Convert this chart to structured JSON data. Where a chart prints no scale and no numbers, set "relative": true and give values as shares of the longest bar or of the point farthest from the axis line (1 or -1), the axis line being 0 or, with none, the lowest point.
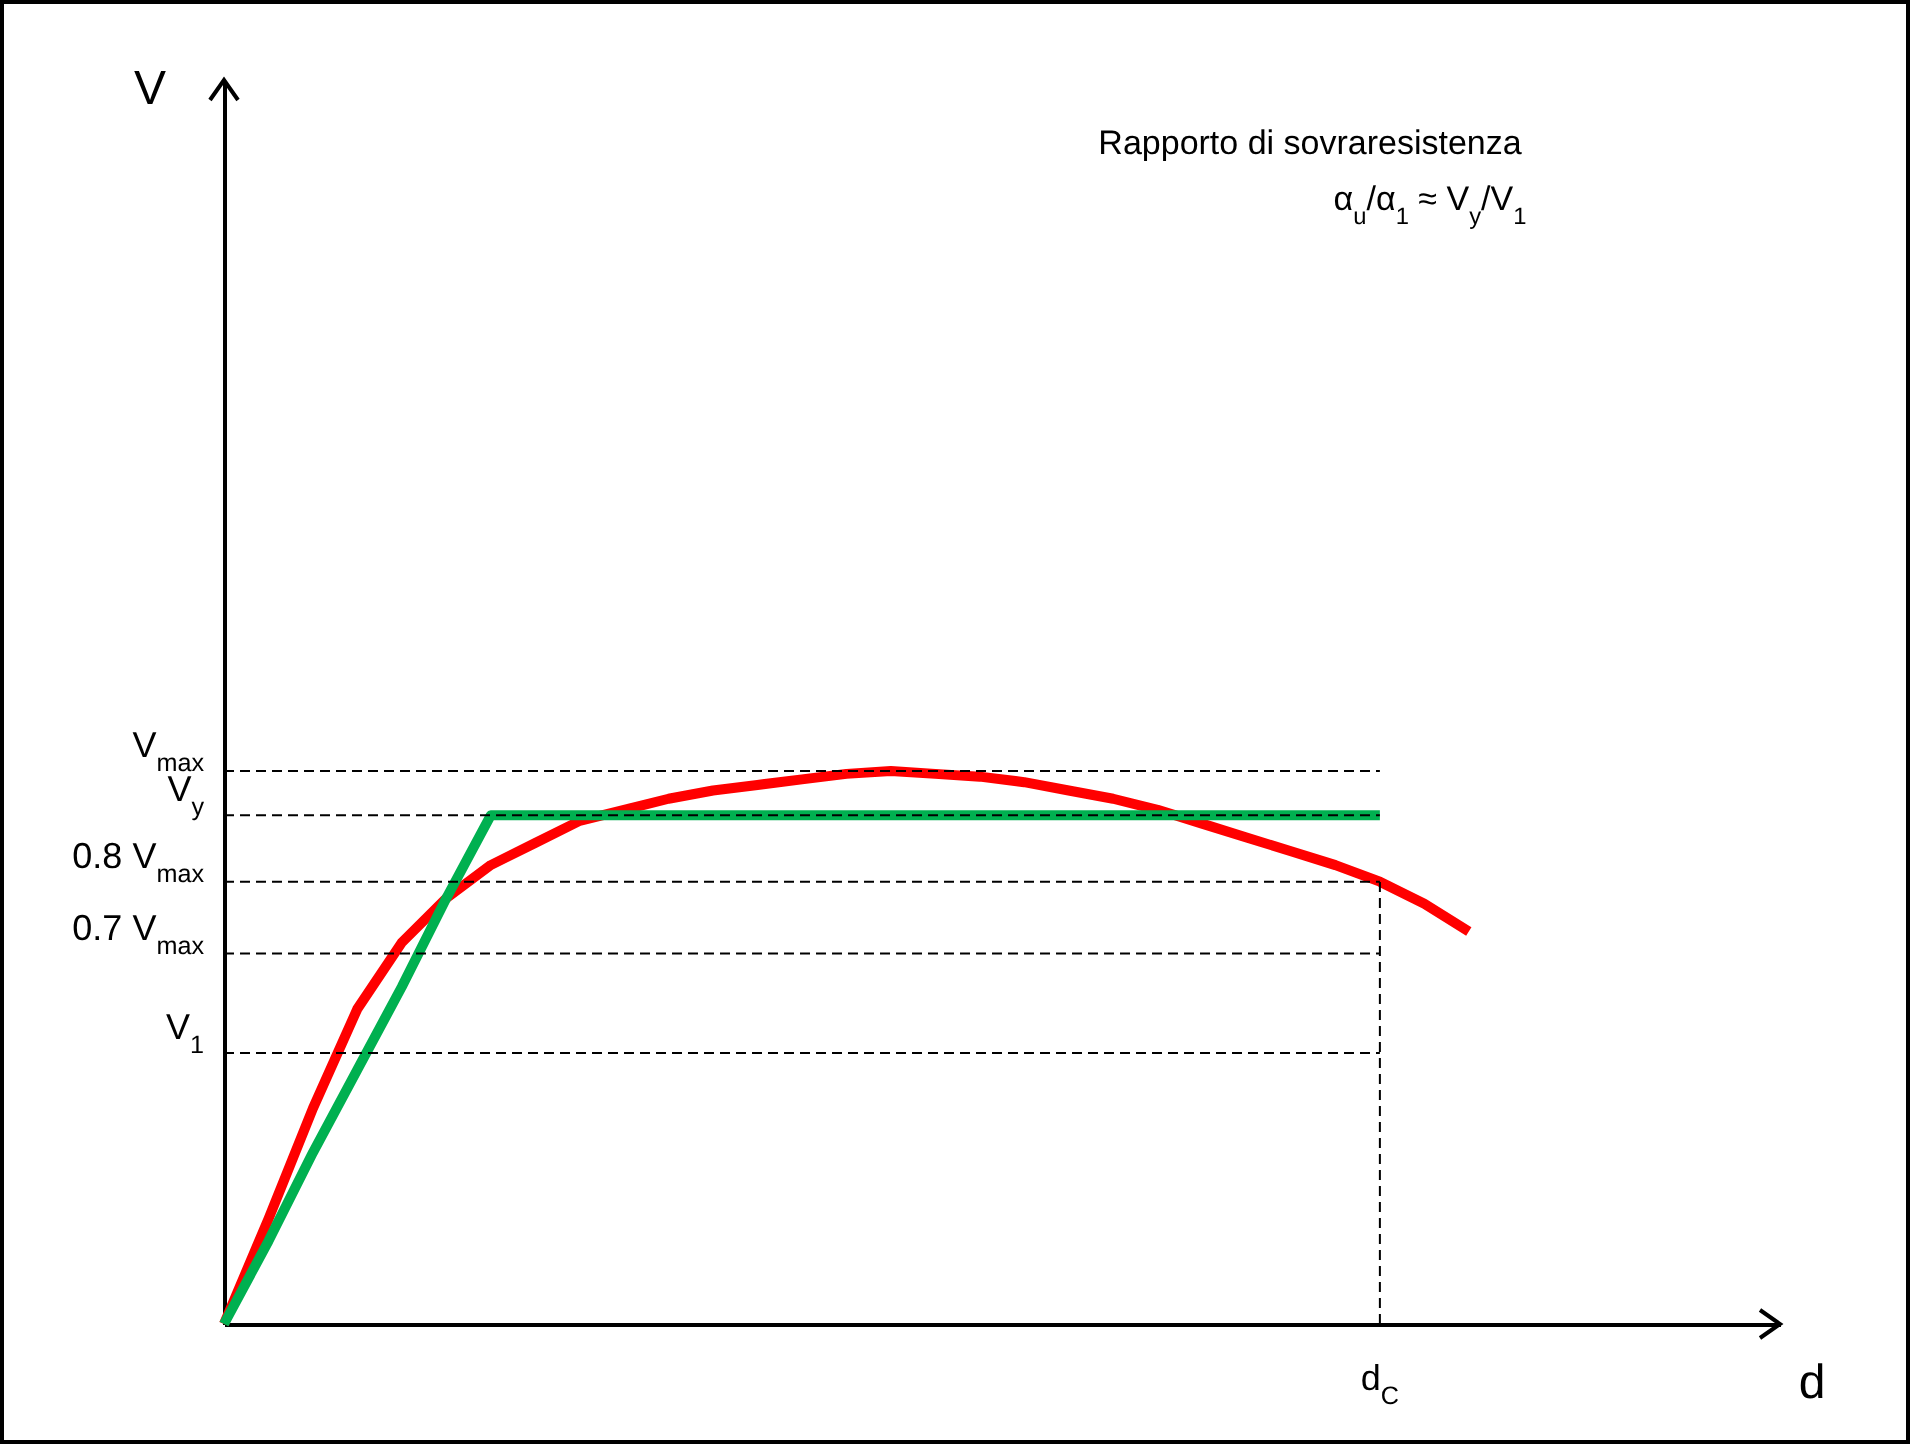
{
  "chart_data": {
    "type": "line",
    "relative": true,
    "annotations": [
      "Rapporto di sovraresistenza",
      "α$_{u}$/α$_{1}$ ≈ V$_{y}$/V$_{1}$",
      "V",
      "d",
      "d$_{C}$"
    ],
    "categories": [
      null,
      null,
      null,
      null,
      null,
      null,
      null,
      null,
      null,
      null,
      null,
      null,
      null,
      null,
      null,
      null,
      null,
      null,
      null,
      null,
      null,
      null,
      null,
      null,
      null,
      null,
      null,
      null,
      null
    ],
    "series": [
      {
        "color": "#ff0000",
        "values": [
          0,
          0.19,
          0.39,
          0.57,
          0.69,
          0.77,
          0.83,
          0.87,
          0.91,
          0.93,
          0.95,
          0.965,
          0.975,
          0.985,
          0.995,
          1,
          0.995,
          0.99,
          0.98,
          0.965,
          0.95,
          0.93,
          0.905,
          0.88,
          0.855,
          0.83,
          0.8,
          0.76,
          0.71
        ]
      },
      {
        "color": "#00b050",
        "values": [
          0,
          0.15,
          0.31,
          0.46,
          0.61,
          0.77,
          0.92,
          0.92,
          0.92,
          0.92,
          0.92,
          0.92,
          0.92,
          0.92,
          0.92,
          0.92,
          0.92,
          0.92,
          0.92,
          0.92,
          0.92,
          0.92,
          0.92,
          0.92,
          0.92,
          0.92,
          0.92,
          null,
          null
        ]
      }
    ],
    "ref_lines": [
      {
        "axis": "y",
        "value": 1,
        "label": "V$_{max}$",
        "line_style": "dashed"
      },
      {
        "axis": "y",
        "value": 0.92,
        "label": "V$_{y}$",
        "line_style": "dashed"
      },
      {
        "axis": "y",
        "value": 0.8,
        "label": "0.8 V$_{max}$",
        "line_style": "dashed"
      },
      {
        "axis": "y",
        "value": 0.67,
        "label": "0.7 V$_{max}$",
        "line_style": "dashed"
      },
      {
        "axis": "y",
        "value": 0.49,
        "label": "V$_{1}$",
        "line_style": "dashed"
      }
    ]
  }
}
